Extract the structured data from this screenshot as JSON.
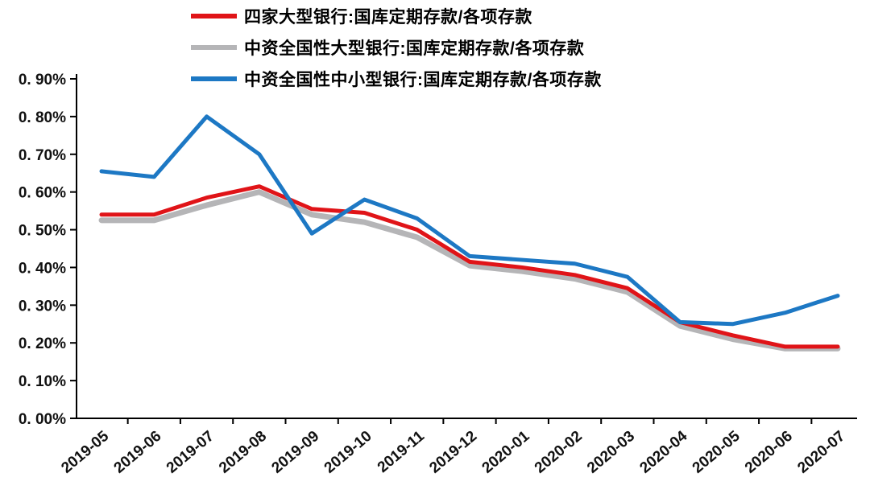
{
  "chart_data": {
    "type": "line",
    "title": "",
    "xlabel": "",
    "ylabel": "",
    "grid": false,
    "legend_position": "top-left-stacked",
    "axis_color": "#000000",
    "categories": [
      "2019-05",
      "2019-06",
      "2019-07",
      "2019-08",
      "2019-09",
      "2019-10",
      "2019-11",
      "2019-12",
      "2020-01",
      "2020-02",
      "2020-03",
      "2020-04",
      "2020-05",
      "2020-06",
      "2020-07"
    ],
    "series": [
      {
        "name": "四家大型银行:国库定期存款/各项存款",
        "color": "#e01418",
        "stroke_width": 5,
        "z": 2,
        "values": [
          0.54,
          0.54,
          0.585,
          0.615,
          0.555,
          0.545,
          0.5,
          0.415,
          0.4,
          0.38,
          0.345,
          0.255,
          0.22,
          0.19,
          0.19
        ]
      },
      {
        "name": "中资全国性大型银行:国库定期存款/各项存款",
        "color": "#b5b5b7",
        "stroke_width": 7,
        "z": 1,
        "values": [
          0.525,
          0.525,
          0.565,
          0.6,
          0.54,
          0.52,
          0.48,
          0.405,
          0.39,
          0.37,
          0.335,
          0.245,
          0.21,
          0.185,
          0.185
        ]
      },
      {
        "name": "中资全国性中小型银行:国库定期存款/各项存款",
        "color": "#1d78c4",
        "stroke_width": 5,
        "z": 3,
        "values": [
          0.655,
          0.64,
          0.8,
          0.7,
          0.49,
          0.58,
          0.53,
          0.43,
          0.42,
          0.41,
          0.375,
          0.255,
          0.25,
          0.28,
          0.325
        ]
      }
    ],
    "ylim": [
      0,
      0.9
    ],
    "ytick_labels": [
      "0. 00%",
      "0. 10%",
      "0. 20%",
      "0. 30%",
      "0. 40%",
      "0. 50%",
      "0. 60%",
      "0. 70%",
      "0. 80%",
      "0. 90%"
    ]
  }
}
